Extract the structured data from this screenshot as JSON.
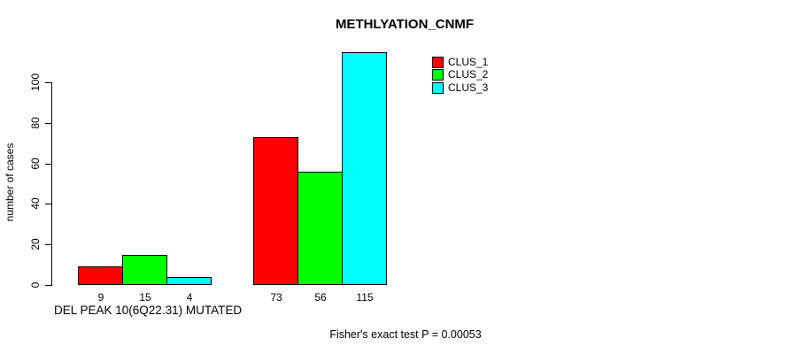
{
  "chart_data": {
    "type": "bar",
    "title": "METHLYATION_CNMF",
    "ylabel": "number of cases",
    "xlabel": "DEL PEAK 10(6Q22.31) MUTATED",
    "footnote": "Fisher's exact test P = 0.00053",
    "legend_position": "top-right",
    "series": [
      {
        "name": "CLUS_1",
        "color": "#ff0000",
        "values": [
          9,
          73
        ]
      },
      {
        "name": "CLUS_2",
        "color": "#00ff00",
        "values": [
          15,
          56
        ]
      },
      {
        "name": "CLUS_3",
        "color": "#00ffff",
        "values": [
          4,
          115
        ]
      }
    ],
    "bar_value_labels": [
      [
        "9",
        "15",
        "4"
      ],
      [
        "73",
        "56",
        "115"
      ]
    ],
    "yticks": [
      0,
      20,
      40,
      60,
      80,
      100
    ],
    "ylim": [
      0,
      115
    ],
    "grid": false,
    "background_color": "#ffffff",
    "bar_border_color": "#000000",
    "text_color": "#000000"
  }
}
